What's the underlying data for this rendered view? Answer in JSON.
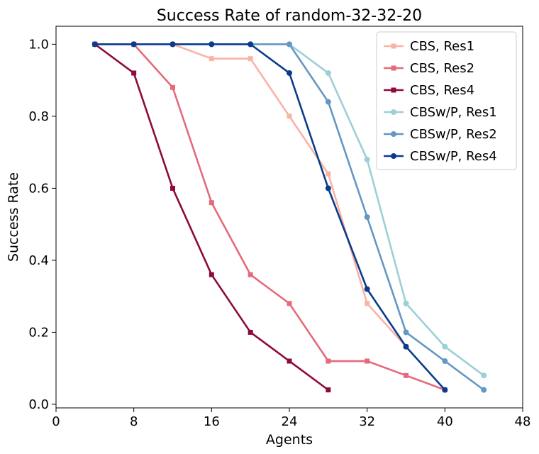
{
  "chart_data": {
    "type": "line",
    "title": "Success Rate of random-32-32-20",
    "xlabel": "Agents",
    "ylabel": "Success Rate",
    "xlim": [
      0,
      48
    ],
    "ylim": [
      -0.01,
      1.05
    ],
    "xticks": [
      0,
      8,
      16,
      24,
      32,
      40,
      48
    ],
    "xtick_labels": [
      "0",
      "8",
      "16",
      "24",
      "32",
      "40",
      "48"
    ],
    "yticks": [
      0.0,
      0.2,
      0.4,
      0.6,
      0.8,
      1.0
    ],
    "ytick_labels": [
      "0.0",
      "0.2",
      "0.4",
      "0.6",
      "0.8",
      "1.0"
    ],
    "grid": false,
    "legend_position": "top-right",
    "series": [
      {
        "name": "CBS, Res1",
        "color": "#f9b3a6",
        "marker": "square",
        "x": [
          4,
          8,
          12,
          16,
          20,
          24,
          28,
          32,
          36
        ],
        "y": [
          1.0,
          1.0,
          1.0,
          0.96,
          0.96,
          0.8,
          0.64,
          0.28,
          0.16
        ]
      },
      {
        "name": "CBS, Res2",
        "color": "#e56a7a",
        "marker": "square",
        "x": [
          4,
          8,
          12,
          16,
          20,
          24,
          28,
          32,
          36,
          40
        ],
        "y": [
          1.0,
          1.0,
          0.88,
          0.56,
          0.36,
          0.28,
          0.12,
          0.12,
          0.08,
          0.04
        ]
      },
      {
        "name": "CBS, Res4",
        "color": "#8c0a3e",
        "marker": "square",
        "x": [
          4,
          8,
          12,
          16,
          20,
          24,
          28
        ],
        "y": [
          1.0,
          0.92,
          0.6,
          0.36,
          0.2,
          0.12,
          0.04
        ]
      },
      {
        "name": "CBSw/P, Res1",
        "color": "#9ccfd6",
        "marker": "circle",
        "x": [
          4,
          8,
          12,
          16,
          20,
          24,
          28,
          32,
          36,
          40,
          44
        ],
        "y": [
          1.0,
          1.0,
          1.0,
          1.0,
          1.0,
          1.0,
          0.92,
          0.68,
          0.28,
          0.16,
          0.08
        ]
      },
      {
        "name": "CBSw/P, Res2",
        "color": "#6497c4",
        "marker": "circle",
        "x": [
          4,
          8,
          12,
          16,
          20,
          24,
          28,
          32,
          36,
          40,
          44
        ],
        "y": [
          1.0,
          1.0,
          1.0,
          1.0,
          1.0,
          1.0,
          0.84,
          0.52,
          0.2,
          0.12,
          0.04
        ]
      },
      {
        "name": "CBSw/P, Res4",
        "color": "#0b3c8c",
        "marker": "circle",
        "x": [
          4,
          8,
          12,
          16,
          20,
          24,
          28,
          32,
          36,
          40
        ],
        "y": [
          1.0,
          1.0,
          1.0,
          1.0,
          1.0,
          0.92,
          0.6,
          0.32,
          0.16,
          0.04
        ]
      }
    ]
  }
}
